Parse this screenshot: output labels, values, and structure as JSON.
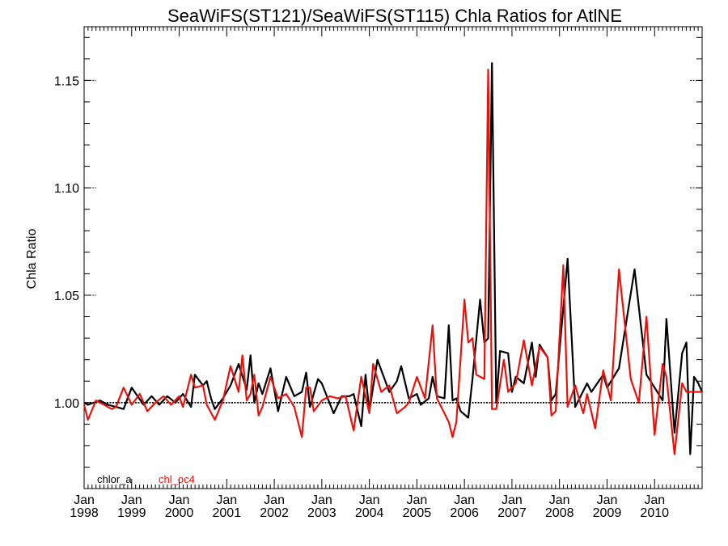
{
  "chart_data": {
    "type": "line",
    "title": "SeaWiFS(ST121)/SeaWiFS(ST115)  Chla Ratios for AtlNE",
    "ylabel": "Chla Ratio",
    "xlabel": "",
    "xlim": [
      1998.0,
      2011.0
    ],
    "ylim": [
      0.96,
      1.175
    ],
    "yticks": [
      {
        "value": 1.0,
        "label": "1.00"
      },
      {
        "value": 1.05,
        "label": "1.05"
      },
      {
        "value": 1.1,
        "label": "1.10"
      },
      {
        "value": 1.15,
        "label": "1.15"
      }
    ],
    "xticks": [
      {
        "value": 1998,
        "month": "Jan",
        "year": "1998"
      },
      {
        "value": 1999,
        "month": "Jan",
        "year": "1999"
      },
      {
        "value": 2000,
        "month": "Jan",
        "year": "2000"
      },
      {
        "value": 2001,
        "month": "Jan",
        "year": "2001"
      },
      {
        "value": 2002,
        "month": "Jan",
        "year": "2002"
      },
      {
        "value": 2003,
        "month": "Jan",
        "year": "2003"
      },
      {
        "value": 2004,
        "month": "Jan",
        "year": "2004"
      },
      {
        "value": 2005,
        "month": "Jan",
        "year": "2005"
      },
      {
        "value": 2006,
        "month": "Jan",
        "year": "2006"
      },
      {
        "value": 2007,
        "month": "Jan",
        "year": "2007"
      },
      {
        "value": 2008,
        "month": "Jan",
        "year": "2008"
      },
      {
        "value": 2009,
        "month": "Jan",
        "year": "2009"
      },
      {
        "value": 2010,
        "month": "Jan",
        "year": "2010"
      }
    ],
    "reference_line": 1.0,
    "grid": false,
    "legend_position": "bottom-left",
    "series": [
      {
        "name": "chlor_a",
        "color": "#000000",
        "x": [
          1998.0,
          1998.08,
          1998.33,
          1998.5,
          1998.67,
          1998.83,
          1999.0,
          1999.25,
          1999.42,
          1999.58,
          1999.75,
          1999.92,
          2000.08,
          2000.25,
          2000.33,
          2000.5,
          2000.58,
          2000.67,
          2000.75,
          2000.92,
          2001.08,
          2001.25,
          2001.42,
          2001.5,
          2001.58,
          2001.67,
          2001.75,
          2001.92,
          2002.08,
          2002.25,
          2002.42,
          2002.58,
          2002.67,
          2002.75,
          2002.92,
          2003.0,
          2003.25,
          2003.42,
          2003.58,
          2003.67,
          2003.83,
          2003.92,
          2004.0,
          2004.17,
          2004.42,
          2004.58,
          2004.67,
          2004.83,
          2005.0,
          2005.08,
          2005.25,
          2005.33,
          2005.42,
          2005.58,
          2005.67,
          2005.75,
          2005.83,
          2005.92,
          2006.08,
          2006.17,
          2006.33,
          2006.42,
          2006.5,
          2006.58,
          2006.67,
          2006.75,
          2006.92,
          2007.0,
          2007.08,
          2007.25,
          2007.42,
          2007.5,
          2007.58,
          2007.75,
          2007.83,
          2007.92,
          2008.17,
          2008.33,
          2008.58,
          2008.67,
          2008.92,
          2009.0,
          2009.25,
          2009.58,
          2009.83,
          2010.17,
          2010.25,
          2010.42,
          2010.58,
          2010.67,
          2010.75,
          2010.83,
          2010.92,
          2011.0
        ],
        "values": [
          1.0,
          0.999,
          1.001,
          0.999,
          0.998,
          0.997,
          1.007,
          0.999,
          1.003,
          0.999,
          1.003,
          1.0,
          1.004,
          0.998,
          1.013,
          1.008,
          1.01,
          1.002,
          0.997,
          1.002,
          1.008,
          1.018,
          1.006,
          1.022,
          1.0,
          1.009,
          1.004,
          1.016,
          0.996,
          1.012,
          1.003,
          1.005,
          1.014,
          0.998,
          1.011,
          1.009,
          0.995,
          1.003,
          1.003,
          1.004,
          0.989,
          1.013,
          0.996,
          1.02,
          1.005,
          1.01,
          1.017,
          1.002,
          1.004,
          0.999,
          1.002,
          1.012,
          1.003,
          1.002,
          1.036,
          1.001,
          1.002,
          0.996,
          0.993,
          1.011,
          1.048,
          1.028,
          1.03,
          1.158,
          1.0,
          1.024,
          1.023,
          1.005,
          1.012,
          1.009,
          1.028,
          1.012,
          1.027,
          1.021,
          1.001,
          1.004,
          1.067,
          0.998,
          1.009,
          1.005,
          1.013,
          1.007,
          1.016,
          1.062,
          1.013,
          1.001,
          1.039,
          0.986,
          1.023,
          1.028,
          0.976,
          1.012,
          1.009,
          1.005
        ]
      },
      {
        "name": "chl_oc4",
        "color": "#e8120c",
        "x": [
          1998.0,
          1998.08,
          1998.25,
          1998.42,
          1998.58,
          1998.67,
          1998.83,
          1999.0,
          1999.17,
          1999.33,
          1999.5,
          1999.67,
          1999.83,
          2000.0,
          2000.08,
          2000.25,
          2000.33,
          2000.5,
          2000.58,
          2000.75,
          2000.92,
          2001.08,
          2001.25,
          2001.33,
          2001.42,
          2001.5,
          2001.58,
          2001.67,
          2001.75,
          2001.92,
          2002.08,
          2002.25,
          2002.42,
          2002.58,
          2002.67,
          2002.75,
          2002.83,
          2003.0,
          2003.17,
          2003.33,
          2003.5,
          2003.67,
          2003.83,
          2004.0,
          2004.08,
          2004.25,
          2004.42,
          2004.58,
          2004.75,
          2004.83,
          2005.0,
          2005.17,
          2005.33,
          2005.42,
          2005.58,
          2005.67,
          2005.75,
          2005.83,
          2006.0,
          2006.08,
          2006.17,
          2006.25,
          2006.42,
          2006.5,
          2006.58,
          2006.67,
          2006.83,
          2006.92,
          2007.08,
          2007.25,
          2007.42,
          2007.58,
          2007.75,
          2007.83,
          2007.92,
          2008.08,
          2008.17,
          2008.33,
          2008.5,
          2008.58,
          2008.75,
          2008.92,
          2009.08,
          2009.25,
          2009.5,
          2009.67,
          2009.83,
          2010.0,
          2010.17,
          2010.25,
          2010.42,
          2010.58,
          2010.67,
          2010.75,
          2010.83,
          2010.92,
          2011.0
        ],
        "values": [
          0.999,
          0.992,
          1.001,
          0.999,
          0.997,
          0.998,
          1.007,
          0.999,
          1.004,
          0.996,
          1.0,
          1.003,
          0.999,
          1.003,
          0.998,
          1.013,
          1.007,
          1.008,
          0.999,
          0.992,
          1.001,
          1.017,
          1.005,
          1.022,
          1.001,
          1.004,
          1.013,
          0.994,
          0.998,
          1.012,
          1.002,
          1.004,
          0.998,
          0.984,
          1.007,
          1.007,
          0.996,
          1.001,
          1.003,
          1.002,
          1.003,
          0.987,
          1.012,
          0.995,
          1.018,
          1.005,
          1.008,
          0.995,
          0.998,
          1.0,
          1.012,
          1.002,
          1.036,
          1.002,
          0.995,
          0.991,
          0.984,
          0.991,
          1.048,
          1.028,
          1.03,
          1.013,
          1.011,
          1.155,
          0.997,
          0.997,
          1.02,
          1.005,
          1.009,
          1.029,
          1.008,
          1.026,
          1.021,
          0.994,
          0.996,
          1.064,
          0.998,
          1.008,
          0.995,
          1.004,
          0.988,
          1.015,
          1.001,
          1.062,
          1.011,
          1.0,
          1.04,
          0.985,
          1.018,
          1.012,
          0.976,
          1.009,
          1.005,
          1.005,
          1.005,
          1.005,
          1.005
        ]
      }
    ]
  }
}
